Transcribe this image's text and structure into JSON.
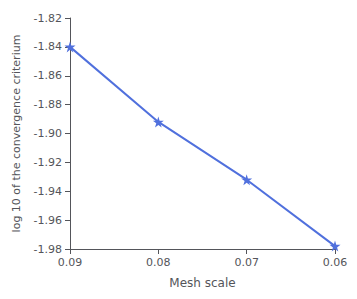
{
  "chart_data": {
    "type": "line",
    "x": [
      0.09,
      0.08,
      0.07,
      0.06
    ],
    "values": [
      -1.84,
      -1.892,
      -1.932,
      -1.978
    ],
    "xlim": [
      0.09,
      0.06
    ],
    "ylim": [
      -1.98,
      -1.82
    ],
    "xticks": [
      0.09,
      0.08,
      0.07,
      0.06
    ],
    "yticks": [
      -1.98,
      -1.96,
      -1.94,
      -1.92,
      {
        "value": -1.9,
        "label": "-1.90"
      },
      -1.88,
      -1.86,
      -1.84,
      -1.82
    ],
    "xlabel": "Mesh scale",
    "ylabel": "log 10 of the convergence criterium",
    "marker": "star",
    "grid": false
  }
}
